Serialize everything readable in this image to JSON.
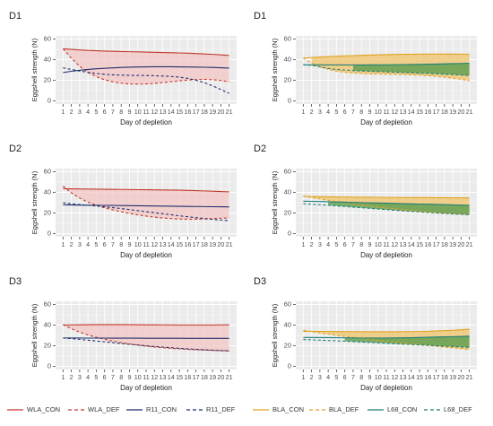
{
  "figure": {
    "x_axis_label": "Day of depletion",
    "y_axis_label": "Eggshell strength (N)",
    "legends": [
      [
        {
          "label": "WLA_CON",
          "color": "#c0392b",
          "dashed": false
        },
        {
          "label": "WLA_DEF",
          "color": "#c0392b",
          "dashed": true
        },
        {
          "label": "R11_CON",
          "color": "#1f2f6b",
          "dashed": false
        },
        {
          "label": "R11_DEF",
          "color": "#1f2f6b",
          "dashed": true
        }
      ],
      [
        {
          "label": "BLA_CON",
          "color": "#e0a321",
          "dashed": false
        },
        {
          "label": "BLA_DEF",
          "color": "#e0a321",
          "dashed": true
        },
        {
          "label": "L68_CON",
          "color": "#1e7f78",
          "dashed": false
        },
        {
          "label": "L68_DEF",
          "color": "#1e7f78",
          "dashed": true
        }
      ]
    ]
  },
  "chart_data": [
    {
      "type": "line",
      "title": "D1",
      "xlabel": "Day of depletion",
      "ylabel": "Eggshell strength (N)",
      "x": [
        1,
        2,
        3,
        4,
        5,
        6,
        7,
        8,
        9,
        10,
        11,
        12,
        13,
        14,
        15,
        16,
        17,
        18,
        19,
        20,
        21
      ],
      "xlim": [
        1,
        21
      ],
      "ylim": [
        0,
        60
      ],
      "yticks": [
        0,
        20,
        40,
        60
      ],
      "grid": true,
      "series": [
        {
          "name": "WLA_CON",
          "color": "#c0392b",
          "dashed": false,
          "values": [
            50.5,
            49.9,
            49.4,
            48.9,
            48.6,
            48.3,
            48.1,
            47.9,
            47.7,
            47.5,
            47.3,
            47.1,
            46.9,
            46.7,
            46.5,
            46.2,
            45.9,
            45.5,
            45.1,
            44.6,
            44.0
          ]
        },
        {
          "name": "WLA_DEF",
          "color": "#c0392b",
          "dashed": true,
          "values": [
            50.5,
            41.5,
            33.5,
            27.5,
            23.5,
            20.5,
            18.5,
            17.2,
            16.5,
            16.3,
            16.5,
            17.0,
            17.8,
            18.6,
            19.5,
            20.2,
            20.7,
            20.9,
            20.6,
            19.8,
            18.5
          ]
        },
        {
          "name": "R11_CON",
          "color": "#1f2f6b",
          "dashed": false,
          "values": [
            27.5,
            28.7,
            29.7,
            30.5,
            31.1,
            31.6,
            32.0,
            32.4,
            32.7,
            32.9,
            33.0,
            33.1,
            33.1,
            33.1,
            33.0,
            32.9,
            32.8,
            32.6,
            32.4,
            32.1,
            31.8
          ]
        },
        {
          "name": "R11_DEF",
          "color": "#1f2f6b",
          "dashed": true,
          "values": [
            32.0,
            30.5,
            29.0,
            27.7,
            26.6,
            25.8,
            25.3,
            25.0,
            24.8,
            24.7,
            24.6,
            24.4,
            24.1,
            23.7,
            23.0,
            21.9,
            20.1,
            17.7,
            14.6,
            11.1,
            7.3
          ]
        }
      ],
      "ribbons": [
        {
          "between": [
            "WLA_CON",
            "WLA_DEF"
          ],
          "from_day": 1,
          "fill": "#f3c6c6",
          "opacity": 0.75
        }
      ]
    },
    {
      "type": "line",
      "title": "D1",
      "xlabel": "Day of depletion",
      "ylabel": "Eggshell strength (N)",
      "x": [
        1,
        2,
        3,
        4,
        5,
        6,
        7,
        8,
        9,
        10,
        11,
        12,
        13,
        14,
        15,
        16,
        17,
        18,
        19,
        20,
        21
      ],
      "xlim": [
        1,
        21
      ],
      "ylim": [
        0,
        60
      ],
      "yticks": [
        0,
        20,
        40,
        60
      ],
      "grid": true,
      "series": [
        {
          "name": "BLA_CON",
          "color": "#e0a321",
          "dashed": false,
          "values": [
            41.5,
            42.0,
            42.5,
            42.9,
            43.3,
            43.6,
            43.9,
            44.2,
            44.4,
            44.6,
            44.8,
            45.0,
            45.1,
            45.2,
            45.3,
            45.4,
            45.4,
            45.4,
            45.4,
            45.3,
            45.3
          ]
        },
        {
          "name": "BLA_DEF",
          "color": "#e0a321",
          "dashed": true,
          "values": [
            41.5,
            36.5,
            33.0,
            30.6,
            28.9,
            27.8,
            27.1,
            26.6,
            26.3,
            26.1,
            26.0,
            25.8,
            25.6,
            25.3,
            24.9,
            24.4,
            23.8,
            23.0,
            22.1,
            21.0,
            19.6
          ]
        },
        {
          "name": "L68_CON",
          "color": "#1e7f78",
          "dashed": false,
          "values": [
            35.0,
            34.9,
            34.9,
            34.8,
            34.8,
            34.8,
            34.8,
            34.8,
            34.9,
            34.9,
            35.0,
            35.1,
            35.2,
            35.3,
            35.4,
            35.6,
            35.7,
            35.9,
            36.1,
            36.3,
            36.5
          ]
        },
        {
          "name": "L68_DEF",
          "color": "#1e7f78",
          "dashed": true,
          "values": [
            35.0,
            34.5,
            33.0,
            31.5,
            30.5,
            29.9,
            29.4,
            29.0,
            28.7,
            28.4,
            28.1,
            27.8,
            27.5,
            27.2,
            26.9,
            26.6,
            26.3,
            25.9,
            25.5,
            25.1,
            24.6
          ]
        }
      ],
      "ribbons": [
        {
          "between": [
            "BLA_CON",
            "BLA_DEF"
          ],
          "from_day": 2,
          "fill": "#f0c572",
          "opacity": 0.8
        },
        {
          "between": [
            "L68_CON",
            "L68_DEF"
          ],
          "from_day": 7,
          "fill": "#5a9e4f",
          "opacity": 0.8
        }
      ]
    },
    {
      "type": "line",
      "title": "D2",
      "xlabel": "Day of depletion",
      "ylabel": "Eggshell strength (N)",
      "x": [
        1,
        2,
        3,
        4,
        5,
        6,
        7,
        8,
        9,
        10,
        11,
        12,
        13,
        14,
        15,
        16,
        17,
        18,
        19,
        20,
        21
      ],
      "xlim": [
        1,
        21
      ],
      "ylim": [
        0,
        60
      ],
      "yticks": [
        0,
        20,
        40,
        60
      ],
      "grid": true,
      "series": [
        {
          "name": "WLA_CON",
          "color": "#c0392b",
          "dashed": false,
          "values": [
            43.5,
            43.4,
            43.3,
            43.2,
            43.1,
            43.0,
            42.9,
            42.8,
            42.7,
            42.6,
            42.5,
            42.4,
            42.3,
            42.2,
            42.1,
            41.9,
            41.7,
            41.4,
            41.1,
            40.8,
            40.5
          ]
        },
        {
          "name": "WLA_DEF",
          "color": "#c0392b",
          "dashed": true,
          "values": [
            46.0,
            39.5,
            34.5,
            30.5,
            27.5,
            25.0,
            23.0,
            21.2,
            19.6,
            18.2,
            17.0,
            16.0,
            15.2,
            14.6,
            14.2,
            14.0,
            14.0,
            14.2,
            14.6,
            15.0,
            15.3
          ]
        },
        {
          "name": "R11_CON",
          "color": "#1f2f6b",
          "dashed": false,
          "values": [
            28.0,
            27.8,
            27.7,
            27.6,
            27.5,
            27.4,
            27.3,
            27.2,
            27.1,
            27.0,
            26.9,
            26.8,
            26.7,
            26.6,
            26.5,
            26.4,
            26.3,
            26.2,
            26.1,
            26.0,
            25.9
          ]
        },
        {
          "name": "R11_DEF",
          "color": "#1f2f6b",
          "dashed": true,
          "values": [
            30.0,
            29.0,
            28.2,
            27.5,
            26.8,
            26.0,
            25.2,
            24.3,
            23.3,
            22.3,
            21.3,
            20.3,
            19.3,
            18.3,
            17.3,
            16.4,
            15.5,
            14.7,
            13.9,
            13.2,
            12.5
          ]
        }
      ],
      "ribbons": [
        {
          "between": [
            "WLA_CON",
            "WLA_DEF"
          ],
          "from_day": 1,
          "fill": "#f3c6c6",
          "opacity": 0.75
        }
      ]
    },
    {
      "type": "line",
      "title": "D2",
      "xlabel": "Day of depletion",
      "ylabel": "Eggshell strength (N)",
      "x": [
        1,
        2,
        3,
        4,
        5,
        6,
        7,
        8,
        9,
        10,
        11,
        12,
        13,
        14,
        15,
        16,
        17,
        18,
        19,
        20,
        21
      ],
      "xlim": [
        1,
        21
      ],
      "ylim": [
        0,
        60
      ],
      "yticks": [
        0,
        20,
        40,
        60
      ],
      "grid": true,
      "series": [
        {
          "name": "BLA_CON",
          "color": "#e0a321",
          "dashed": false,
          "values": [
            36.0,
            35.9,
            35.8,
            35.7,
            35.6,
            35.5,
            35.4,
            35.3,
            35.3,
            35.2,
            35.1,
            35.1,
            35.0,
            35.0,
            34.9,
            34.9,
            34.8,
            34.8,
            34.7,
            34.7,
            34.6
          ]
        },
        {
          "name": "BLA_DEF",
          "color": "#e0a321",
          "dashed": true,
          "values": [
            36.5,
            35.0,
            33.6,
            32.3,
            31.0,
            29.9,
            28.8,
            27.8,
            26.8,
            25.9,
            25.0,
            24.2,
            23.4,
            22.6,
            21.9,
            21.2,
            20.6,
            20.0,
            19.5,
            19.0,
            18.5
          ]
        },
        {
          "name": "L68_CON",
          "color": "#1e7f78",
          "dashed": false,
          "values": [
            31.5,
            31.3,
            31.1,
            30.9,
            30.7,
            30.5,
            30.3,
            30.1,
            29.9,
            29.7,
            29.5,
            29.3,
            29.1,
            28.9,
            28.7,
            28.5,
            28.3,
            28.1,
            27.9,
            27.7,
            27.5
          ]
        },
        {
          "name": "L68_DEF",
          "color": "#1e7f78",
          "dashed": true,
          "values": [
            29.0,
            28.5,
            28.0,
            27.5,
            26.9,
            26.3,
            25.7,
            25.1,
            24.5,
            23.9,
            23.3,
            22.7,
            22.1,
            21.6,
            21.1,
            20.6,
            20.1,
            19.6,
            19.1,
            18.7,
            18.3
          ]
        }
      ],
      "ribbons": [
        {
          "between": [
            "BLA_CON",
            "BLA_DEF"
          ],
          "from_day": 2,
          "fill": "#f0c572",
          "opacity": 0.8
        },
        {
          "between": [
            "L68_CON",
            "L68_DEF"
          ],
          "from_day": 4,
          "fill": "#5a9e4f",
          "opacity": 0.8
        }
      ]
    },
    {
      "type": "line",
      "title": "D3",
      "xlabel": "Day of depletion",
      "ylabel": "Eggshell strength (N)",
      "x": [
        1,
        2,
        3,
        4,
        5,
        6,
        7,
        8,
        9,
        10,
        11,
        12,
        13,
        14,
        15,
        16,
        17,
        18,
        19,
        20,
        21
      ],
      "xlim": [
        1,
        21
      ],
      "ylim": [
        0,
        60
      ],
      "yticks": [
        0,
        20,
        40,
        60
      ],
      "grid": true,
      "series": [
        {
          "name": "WLA_CON",
          "color": "#c0392b",
          "dashed": false,
          "values": [
            40.0,
            40.2,
            40.3,
            40.4,
            40.5,
            40.5,
            40.5,
            40.5,
            40.4,
            40.4,
            40.3,
            40.3,
            40.2,
            40.2,
            40.1,
            40.1,
            40.1,
            40.1,
            40.1,
            40.2,
            40.3
          ]
        },
        {
          "name": "WLA_DEF",
          "color": "#c0392b",
          "dashed": true,
          "values": [
            40.5,
            36.5,
            33.2,
            30.5,
            28.2,
            26.2,
            24.5,
            23.0,
            21.7,
            20.6,
            19.6,
            18.8,
            18.1,
            17.5,
            17.0,
            16.5,
            16.1,
            15.8,
            15.5,
            15.3,
            15.0
          ]
        },
        {
          "name": "R11_CON",
          "color": "#1f2f6b",
          "dashed": false,
          "values": [
            27.5,
            27.5,
            27.5,
            27.4,
            27.4,
            27.4,
            27.3,
            27.3,
            27.3,
            27.3,
            27.2,
            27.2,
            27.2,
            27.2,
            27.2,
            27.1,
            27.1,
            27.1,
            27.1,
            27.1,
            27.1
          ]
        },
        {
          "name": "R11_DEF",
          "color": "#1f2f6b",
          "dashed": true,
          "values": [
            27.5,
            26.9,
            26.2,
            25.4,
            24.6,
            23.8,
            23.0,
            22.2,
            21.4,
            20.7,
            20.0,
            19.3,
            18.7,
            18.1,
            17.5,
            17.0,
            16.5,
            16.1,
            15.7,
            15.3,
            15.0
          ]
        }
      ],
      "ribbons": [
        {
          "between": [
            "WLA_CON",
            "WLA_DEF"
          ],
          "from_day": 1,
          "fill": "#f3c6c6",
          "opacity": 0.75
        }
      ]
    },
    {
      "type": "line",
      "title": "D3",
      "xlabel": "Day of depletion",
      "ylabel": "Eggshell strength (N)",
      "x": [
        1,
        2,
        3,
        4,
        5,
        6,
        7,
        8,
        9,
        10,
        11,
        12,
        13,
        14,
        15,
        16,
        17,
        18,
        19,
        20,
        21
      ],
      "xlim": [
        1,
        21
      ],
      "ylim": [
        0,
        60
      ],
      "yticks": [
        0,
        20,
        40,
        60
      ],
      "grid": true,
      "series": [
        {
          "name": "BLA_CON",
          "color": "#e0a321",
          "dashed": false,
          "values": [
            34.0,
            34.0,
            33.9,
            33.9,
            33.8,
            33.7,
            33.6,
            33.6,
            33.5,
            33.5,
            33.5,
            33.5,
            33.6,
            33.7,
            33.8,
            34.0,
            34.3,
            34.6,
            35.0,
            35.5,
            36.0
          ]
        },
        {
          "name": "BLA_DEF",
          "color": "#e0a321",
          "dashed": true,
          "values": [
            35.0,
            33.7,
            32.4,
            31.2,
            30.1,
            29.0,
            28.0,
            27.0,
            26.1,
            25.2,
            24.3,
            23.5,
            22.7,
            21.9,
            21.1,
            20.3,
            19.5,
            18.7,
            17.9,
            17.1,
            16.3
          ]
        },
        {
          "name": "L68_CON",
          "color": "#1e7f78",
          "dashed": false,
          "values": [
            28.0,
            28.0,
            27.9,
            27.9,
            27.8,
            27.7,
            27.6,
            27.5,
            27.5,
            27.5,
            27.5,
            27.6,
            27.7,
            27.8,
            28.0,
            28.2,
            28.4,
            28.6,
            28.8,
            29.0,
            29.3
          ]
        },
        {
          "name": "L68_DEF",
          "color": "#1e7f78",
          "dashed": true,
          "values": [
            26.0,
            25.7,
            25.4,
            25.1,
            24.8,
            24.4,
            24.0,
            23.6,
            23.2,
            22.8,
            22.4,
            22.0,
            21.6,
            21.2,
            20.8,
            20.4,
            20.0,
            19.6,
            19.2,
            18.8,
            18.4
          ]
        }
      ],
      "ribbons": [
        {
          "between": [
            "BLA_CON",
            "BLA_DEF"
          ],
          "from_day": 2,
          "fill": "#f0c572",
          "opacity": 0.8
        },
        {
          "between": [
            "L68_CON",
            "L68_DEF"
          ],
          "from_day": 6,
          "fill": "#5a9e4f",
          "opacity": 0.8
        }
      ]
    }
  ]
}
